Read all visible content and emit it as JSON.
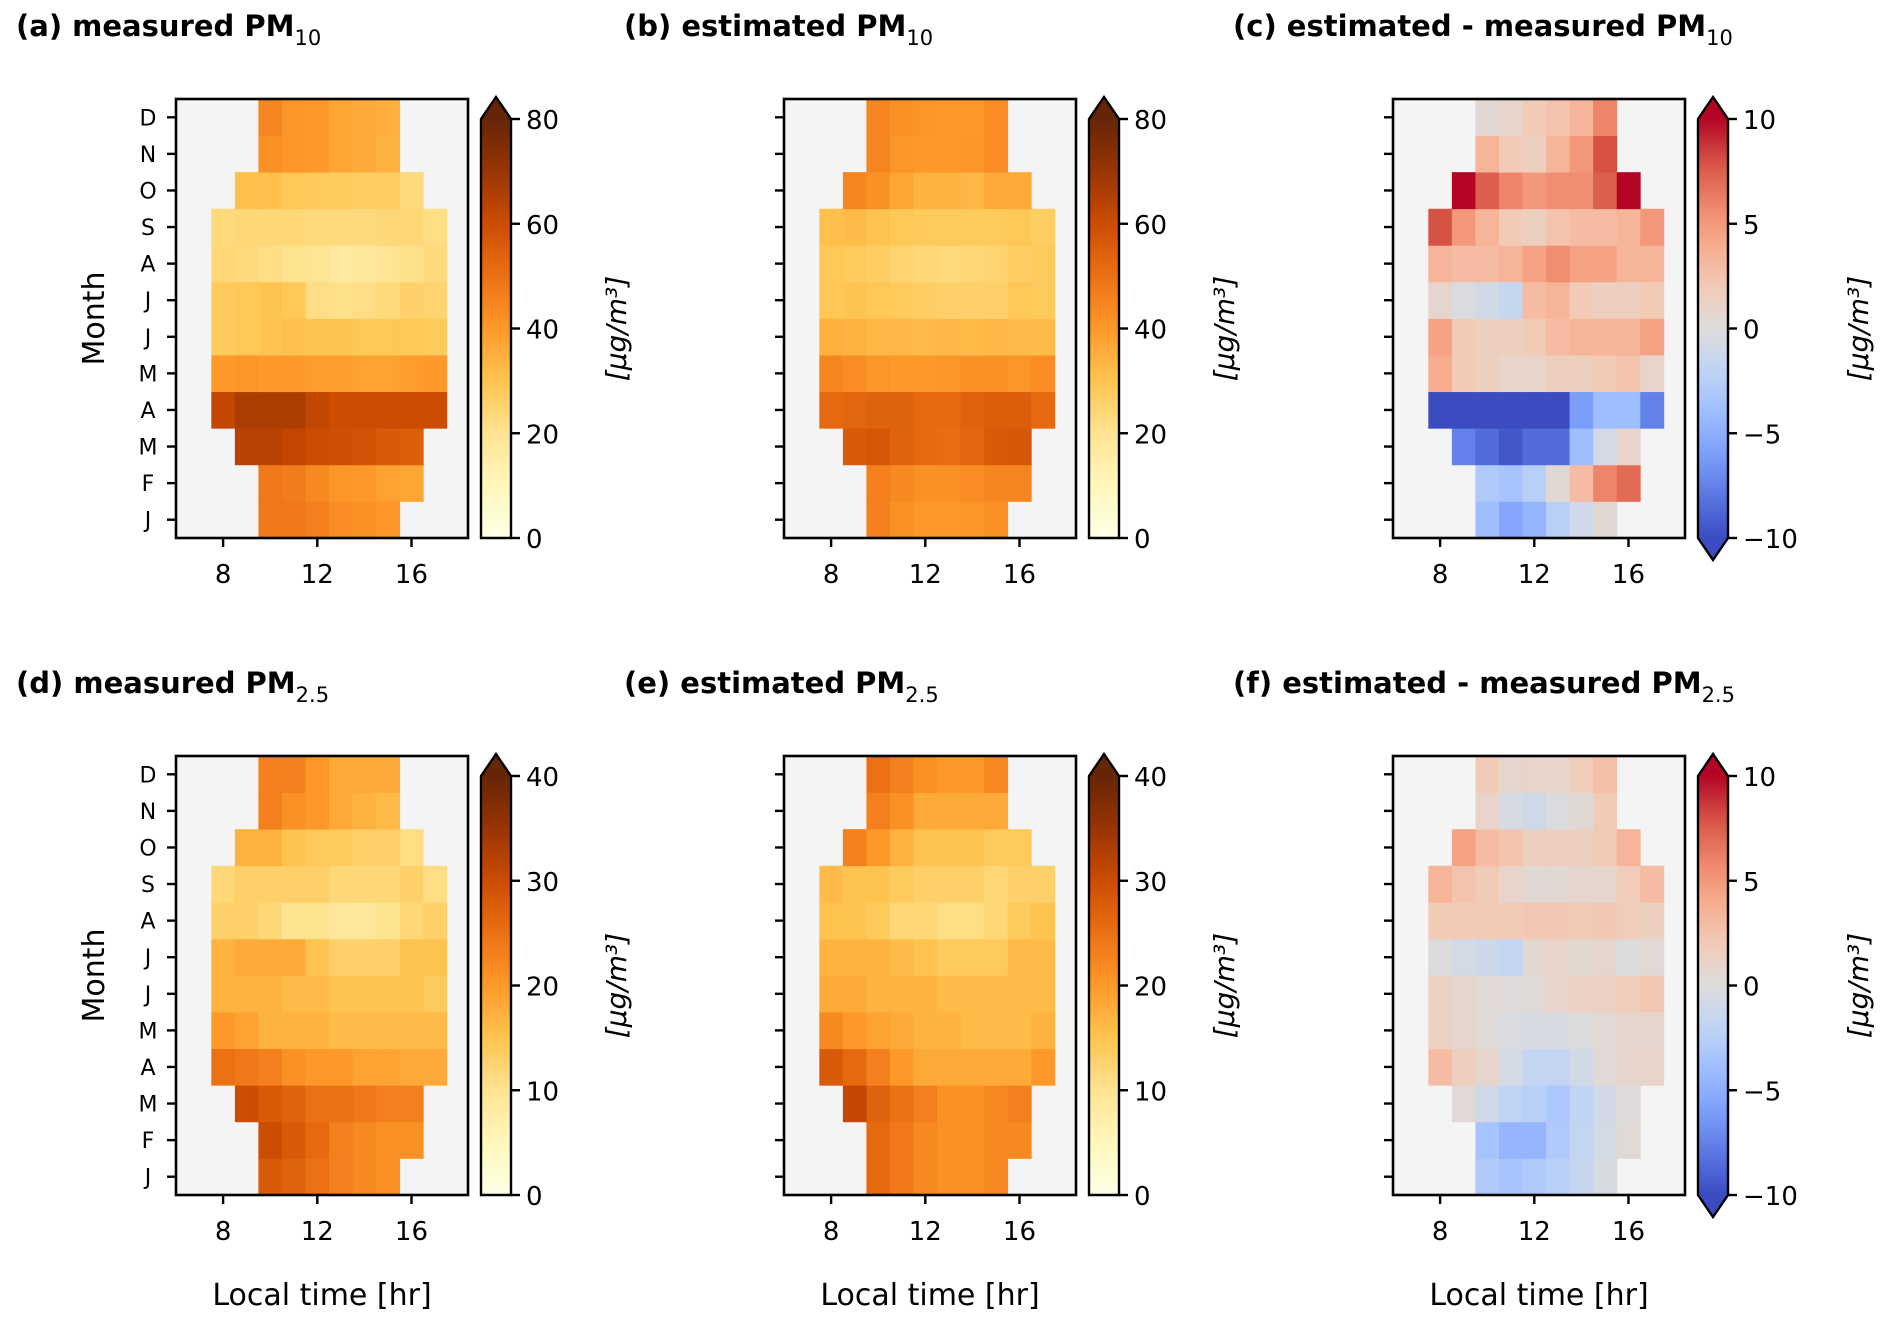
{
  "chart_data": [
    {
      "id": "a",
      "type": "heatmap",
      "title_prefix": "(a) measured PM",
      "title_sub": "10",
      "xlabel": "",
      "ylabel": "Month",
      "x": [
        8,
        9,
        10,
        11,
        12,
        13,
        14,
        15,
        16,
        17
      ],
      "xticks": [
        8,
        12,
        16
      ],
      "xlim": [
        6,
        18.4
      ],
      "months": [
        "J",
        "F",
        "M",
        "A",
        "M",
        "J",
        "J",
        "A",
        "S",
        "O",
        "N",
        "D"
      ],
      "show_month_labels": true,
      "colormap": "YlOrBr",
      "vmin": 0,
      "vmax": 80,
      "extend": "max",
      "cbar_ticks": [
        0,
        20,
        40,
        60,
        80
      ],
      "cbar_label": "[μg/m³]",
      "values": [
        [
          null,
          null,
          48,
          48,
          46,
          43,
          42,
          41,
          null,
          null
        ],
        [
          null,
          null,
          48,
          47,
          44,
          41,
          40,
          38,
          37,
          null
        ],
        [
          null,
          64,
          64,
          62,
          60,
          59,
          58,
          56,
          55,
          null
        ],
        [
          62,
          66,
          66,
          66,
          62,
          60,
          60,
          60,
          60,
          60
        ],
        [
          40,
          41,
          40,
          40,
          39,
          39,
          38,
          38,
          39,
          40
        ],
        [
          28,
          29,
          30,
          31,
          30,
          30,
          29,
          29,
          29,
          28
        ],
        [
          28,
          29,
          30,
          29,
          22,
          21,
          22,
          23,
          26,
          25
        ],
        [
          24,
          23,
          22,
          20,
          19,
          17,
          18,
          19,
          21,
          23
        ],
        [
          23,
          24,
          24,
          24,
          23,
          23,
          23,
          24,
          24,
          22
        ],
        [
          null,
          31,
          31,
          29,
          28,
          28,
          27,
          27,
          23,
          null
        ],
        [
          null,
          null,
          42,
          41,
          40,
          37,
          36,
          34,
          null,
          null
        ],
        [
          null,
          null,
          45,
          41,
          40,
          37,
          36,
          35,
          null,
          null
        ]
      ]
    },
    {
      "id": "b",
      "type": "heatmap",
      "title_prefix": "(b) estimated PM",
      "title_sub": "10",
      "xlabel": "",
      "ylabel": "",
      "x": [
        8,
        9,
        10,
        11,
        12,
        13,
        14,
        15,
        16,
        17
      ],
      "xticks": [
        8,
        12,
        16
      ],
      "xlim": [
        6,
        18.4
      ],
      "months": [
        "J",
        "F",
        "M",
        "A",
        "M",
        "J",
        "J",
        "A",
        "S",
        "O",
        "N",
        "D"
      ],
      "show_month_labels": false,
      "colormap": "YlOrBr",
      "vmin": 0,
      "vmax": 80,
      "extend": "max",
      "cbar_ticks": [
        0,
        20,
        40,
        60,
        80
      ],
      "cbar_label": "[μg/m³]",
      "values": [
        [
          null,
          null,
          46,
          42,
          40,
          40,
          41,
          42,
          null,
          null
        ],
        [
          null,
          null,
          46,
          44,
          42,
          42,
          43,
          45,
          45,
          null
        ],
        [
          null,
          56,
          57,
          54,
          52,
          51,
          53,
          56,
          57,
          null
        ],
        [
          52,
          53,
          54,
          54,
          52,
          52,
          54,
          55,
          55,
          52
        ],
        [
          45,
          43,
          41,
          40,
          40,
          41,
          42,
          42,
          41,
          43
        ],
        [
          35,
          34,
          33,
          33,
          32,
          33,
          32,
          33,
          32,
          32
        ],
        [
          29,
          30,
          29,
          28,
          27,
          26,
          26,
          26,
          29,
          28
        ],
        [
          29,
          28,
          27,
          25,
          24,
          23,
          24,
          25,
          27,
          28
        ],
        [
          31,
          32,
          30,
          29,
          28,
          28,
          28,
          28,
          29,
          27
        ],
        [
          null,
          45,
          42,
          37,
          34,
          34,
          33,
          36,
          36,
          null
        ],
        [
          null,
          null,
          45,
          41,
          40,
          40,
          41,
          43,
          null,
          null
        ],
        [
          null,
          null,
          45,
          42,
          41,
          40,
          40,
          43,
          null,
          null
        ]
      ]
    },
    {
      "id": "c",
      "type": "heatmap",
      "title_prefix": "(c) estimated - measured PM",
      "title_sub": "10",
      "xlabel": "",
      "ylabel": "",
      "x": [
        8,
        9,
        10,
        11,
        12,
        13,
        14,
        15,
        16,
        17
      ],
      "xticks": [
        8,
        12,
        16
      ],
      "xlim": [
        6,
        18.4
      ],
      "months": [
        "J",
        "F",
        "M",
        "A",
        "M",
        "J",
        "J",
        "A",
        "S",
        "O",
        "N",
        "D"
      ],
      "show_month_labels": false,
      "colormap": "coolwarm",
      "vmin": -10,
      "vmax": 10,
      "extend": "both",
      "cbar_ticks": [
        -10,
        -5,
        0,
        5,
        10
      ],
      "cbar_label": "[μg/m³]",
      "values": [
        [
          null,
          null,
          -4,
          -5.5,
          -4.5,
          -2.5,
          -1,
          0.5,
          null,
          null
        ],
        [
          null,
          null,
          -3,
          -3.5,
          -2.5,
          0.5,
          3,
          6,
          7,
          null
        ],
        [
          null,
          -7.5,
          -8.5,
          -9.5,
          -8.5,
          -8.5,
          -4,
          -0.7,
          1,
          null
        ],
        [
          -11,
          -11,
          -11,
          -11,
          -11,
          -10,
          -6,
          -4,
          -4,
          -7.5
        ],
        [
          4,
          2,
          1.5,
          1,
          1,
          1.5,
          1.5,
          2,
          2.5,
          1
        ],
        [
          4.5,
          2,
          1.5,
          1.5,
          2,
          3,
          3.5,
          3.5,
          3.5,
          4.5
        ],
        [
          0.8,
          -0.3,
          -0.8,
          -1.5,
          3,
          3.5,
          2,
          1.5,
          1.5,
          2
        ],
        [
          3.5,
          3,
          3,
          3.5,
          4.5,
          5.5,
          4.5,
          4.5,
          3.5,
          3.5
        ],
        [
          8,
          5,
          3.5,
          2,
          1.5,
          2.5,
          3,
          3,
          3.5,
          5
        ],
        [
          null,
          11,
          7.5,
          6,
          5,
          5.5,
          5.5,
          7.5,
          11,
          null
        ],
        [
          null,
          null,
          3.5,
          2,
          1.5,
          3.5,
          5,
          8,
          null,
          null
        ],
        [
          null,
          null,
          0.5,
          1,
          2,
          2.5,
          3.5,
          6,
          null,
          null
        ]
      ]
    },
    {
      "id": "d",
      "type": "heatmap",
      "title_prefix": "(d) measured PM",
      "title_sub": "2.5",
      "xlabel": "Local time [hr]",
      "ylabel": "Month",
      "x": [
        8,
        9,
        10,
        11,
        12,
        13,
        14,
        15,
        16,
        17
      ],
      "xticks": [
        8,
        12,
        16
      ],
      "xlim": [
        6,
        18.4
      ],
      "months": [
        "J",
        "F",
        "M",
        "A",
        "M",
        "J",
        "J",
        "A",
        "S",
        "O",
        "N",
        "D"
      ],
      "show_month_labels": true,
      "colormap": "YlOrBr",
      "vmin": 0,
      "vmax": 40,
      "extend": "max",
      "cbar_ticks": [
        0,
        10,
        20,
        30,
        40
      ],
      "cbar_label": "[μg/m³]",
      "values": [
        [
          null,
          null,
          28,
          27,
          25,
          23,
          22,
          21,
          null,
          null
        ],
        [
          null,
          null,
          30,
          28,
          26,
          23,
          22,
          21,
          21,
          null
        ],
        [
          null,
          30,
          28,
          27,
          25,
          25,
          24,
          23,
          23,
          null
        ],
        [
          25,
          24,
          23,
          21,
          20,
          20,
          19,
          19,
          18,
          18
        ],
        [
          20,
          19,
          17,
          17,
          17,
          16,
          16,
          16,
          16,
          16
        ],
        [
          17,
          17,
          17,
          16,
          16,
          15,
          15,
          15,
          15,
          14
        ],
        [
          17,
          18,
          18,
          18,
          15,
          13,
          13,
          13,
          15,
          15
        ],
        [
          13,
          13,
          12,
          10,
          10,
          9,
          9,
          10,
          12,
          13
        ],
        [
          12,
          13,
          13,
          13,
          13,
          12,
          12,
          12,
          13,
          11
        ],
        [
          null,
          17,
          17,
          15,
          14,
          14,
          13,
          13,
          11,
          null
        ],
        [
          null,
          null,
          23,
          21,
          20,
          18,
          17,
          16,
          null,
          null
        ],
        [
          null,
          null,
          23,
          23,
          20,
          18,
          18,
          18,
          null,
          null
        ]
      ]
    },
    {
      "id": "e",
      "type": "heatmap",
      "title_prefix": "(e) estimated PM",
      "title_sub": "2.5",
      "xlabel": "Local time [hr]",
      "ylabel": "",
      "x": [
        8,
        9,
        10,
        11,
        12,
        13,
        14,
        15,
        16,
        17
      ],
      "xticks": [
        8,
        12,
        16
      ],
      "xlim": [
        6,
        18.4
      ],
      "months": [
        "J",
        "F",
        "M",
        "A",
        "M",
        "J",
        "J",
        "A",
        "S",
        "O",
        "N",
        "D"
      ],
      "show_month_labels": false,
      "colormap": "YlOrBr",
      "vmin": 0,
      "vmax": 40,
      "extend": "max",
      "cbar_ticks": [
        0,
        10,
        20,
        30,
        40
      ],
      "cbar_label": "[μg/m³]",
      "values": [
        [
          null,
          null,
          26,
          24,
          22,
          21,
          21,
          22,
          null,
          null
        ],
        [
          null,
          null,
          26,
          24,
          22,
          21,
          21,
          22,
          22,
          null
        ],
        [
          null,
          31,
          27,
          25,
          23,
          21,
          21,
          22,
          23,
          null
        ],
        [
          28,
          26,
          23,
          20,
          18,
          18,
          18,
          18,
          18,
          20
        ],
        [
          22,
          20,
          19,
          18,
          17,
          17,
          16,
          16,
          16,
          17
        ],
        [
          18,
          18,
          17,
          17,
          17,
          16,
          16,
          16,
          16,
          16
        ],
        [
          17,
          17,
          17,
          16,
          15,
          14,
          14,
          14,
          16,
          16
        ],
        [
          15,
          15,
          14,
          12,
          12,
          11,
          11,
          12,
          14,
          15
        ],
        [
          16,
          15,
          15,
          14,
          13,
          13,
          13,
          12,
          13,
          13
        ],
        [
          null,
          23,
          20,
          17,
          15,
          15,
          15,
          14,
          14,
          null
        ],
        [
          null,
          null,
          23,
          21,
          18,
          18,
          18,
          18,
          null,
          null
        ],
        [
          null,
          null,
          25,
          23,
          21,
          20,
          20,
          22,
          null,
          null
        ]
      ]
    },
    {
      "id": "f",
      "type": "heatmap",
      "title_prefix": "(f) estimated - measured PM",
      "title_sub": "2.5",
      "xlabel": "Local time [hr]",
      "ylabel": "",
      "x": [
        8,
        9,
        10,
        11,
        12,
        13,
        14,
        15,
        16,
        17
      ],
      "xticks": [
        8,
        12,
        16
      ],
      "xlim": [
        6,
        18.4
      ],
      "months": [
        "J",
        "F",
        "M",
        "A",
        "M",
        "J",
        "J",
        "A",
        "S",
        "O",
        "N",
        "D"
      ],
      "show_month_labels": false,
      "colormap": "coolwarm",
      "vmin": -10,
      "vmax": 10,
      "extend": "both",
      "cbar_ticks": [
        -10,
        -5,
        0,
        5,
        10
      ],
      "cbar_label": "[μg/m³]",
      "values": [
        [
          null,
          null,
          -3,
          -3.5,
          -3,
          -2.5,
          -1.5,
          -0.5,
          null,
          null
        ],
        [
          null,
          null,
          -3.5,
          -4.5,
          -4.5,
          -3,
          -1.8,
          -0.6,
          0.3,
          null
        ],
        [
          null,
          0.3,
          -1,
          -2,
          -2.5,
          -3.2,
          -2,
          -0.8,
          0.1,
          null
        ],
        [
          3,
          1.5,
          0.8,
          -0.6,
          -1.8,
          -1.8,
          -0.8,
          0.4,
          0.8,
          1
        ],
        [
          1.3,
          0.8,
          0.2,
          -0.2,
          -0.4,
          -0.4,
          -0.1,
          0.4,
          0.8,
          0.8
        ],
        [
          1.3,
          0.8,
          0.3,
          0.1,
          0.2,
          1,
          1.3,
          1.3,
          1.8,
          2.3
        ],
        [
          -0.1,
          -0.7,
          -1.2,
          -1.8,
          0.6,
          1,
          0.6,
          0.8,
          -0.1,
          0.3
        ],
        [
          2,
          2,
          2,
          2,
          2.2,
          2.2,
          2,
          2.2,
          1.8,
          1.5
        ],
        [
          3.5,
          2.5,
          2,
          1,
          0.5,
          0.5,
          0.8,
          0.8,
          1.8,
          3
        ],
        [
          null,
          4.5,
          3,
          2.5,
          1.5,
          1.5,
          1.5,
          2,
          3.5,
          null
        ],
        [
          null,
          null,
          1,
          -0.5,
          -1,
          -0.2,
          0.5,
          2,
          null,
          null
        ],
        [
          null,
          null,
          2,
          0.8,
          1,
          1,
          1.8,
          2.8,
          null,
          null
        ]
      ]
    }
  ],
  "colors": {
    "masked": "#f4f4f4",
    "frame": "#000000"
  }
}
